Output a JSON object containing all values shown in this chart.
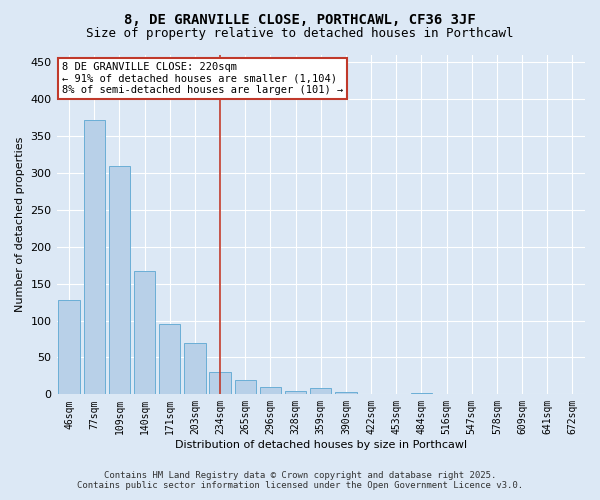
{
  "title": "8, DE GRANVILLE CLOSE, PORTHCAWL, CF36 3JF",
  "subtitle": "Size of property relative to detached houses in Porthcawl",
  "xlabel": "Distribution of detached houses by size in Porthcawl",
  "ylabel": "Number of detached properties",
  "categories": [
    "46sqm",
    "77sqm",
    "109sqm",
    "140sqm",
    "171sqm",
    "203sqm",
    "234sqm",
    "265sqm",
    "296sqm",
    "328sqm",
    "359sqm",
    "390sqm",
    "422sqm",
    "453sqm",
    "484sqm",
    "516sqm",
    "547sqm",
    "578sqm",
    "609sqm",
    "641sqm",
    "672sqm"
  ],
  "values": [
    128,
    372,
    309,
    167,
    96,
    70,
    30,
    20,
    10,
    5,
    8,
    3,
    0,
    0,
    2,
    0,
    0,
    0,
    0,
    0,
    1
  ],
  "bar_color": "#b8d0e8",
  "bar_edge_color": "#6baed6",
  "ylim": [
    0,
    460
  ],
  "yticks": [
    0,
    50,
    100,
    150,
    200,
    250,
    300,
    350,
    400,
    450
  ],
  "vline_x": 6.0,
  "vline_color": "#c0392b",
  "annotation_line1": "8 DE GRANVILLE CLOSE: 220sqm",
  "annotation_line2": "← 91% of detached houses are smaller (1,104)",
  "annotation_line3": "8% of semi-detached houses are larger (101) →",
  "annotation_box_color": "#ffffff",
  "annotation_box_edgecolor": "#c0392b",
  "footer_line1": "Contains HM Land Registry data © Crown copyright and database right 2025.",
  "footer_line2": "Contains public sector information licensed under the Open Government Licence v3.0.",
  "bg_color": "#dce8f5",
  "plot_bg_color": "#dce8f5",
  "grid_color": "#ffffff",
  "title_fontsize": 10,
  "subtitle_fontsize": 9,
  "tick_fontsize": 7,
  "ylabel_fontsize": 8,
  "xlabel_fontsize": 8,
  "footer_fontsize": 6.5,
  "annotation_fontsize": 7.5
}
